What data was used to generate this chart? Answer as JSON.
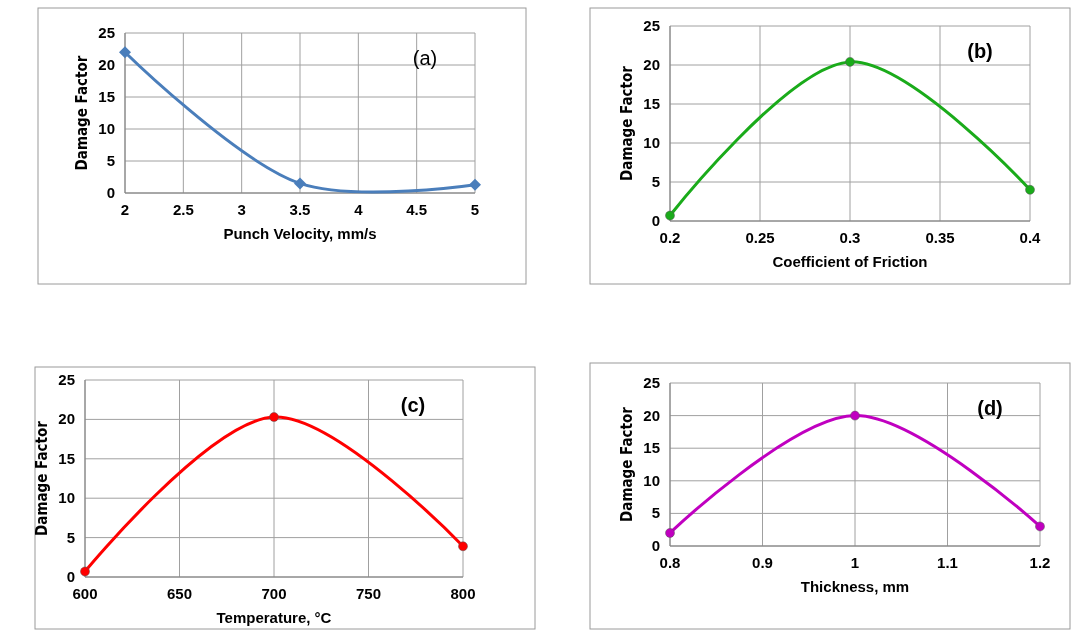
{
  "chart_data": [
    {
      "type": "line",
      "xlabel": "Punch Velocity, mm/s",
      "ylabel": "Damage Factor",
      "annotations": [
        "(a)"
      ],
      "x": [
        2,
        3.5,
        5
      ],
      "series": [
        {
          "color": "#4a7ebb",
          "values": [
            22,
            1.5,
            1.3
          ]
        }
      ],
      "xlim": [
        2,
        5
      ],
      "xticks": [
        2,
        2.5,
        3,
        3.5,
        4,
        4.5,
        5
      ],
      "ylim": [
        0,
        25
      ],
      "yticks": [
        0,
        5,
        10,
        15,
        20,
        25
      ],
      "grid": true,
      "marker": "diamond",
      "line_style": "solid"
    },
    {
      "type": "line",
      "xlabel": "Coefficient of Friction",
      "ylabel": "Damage Factor",
      "annotations": [
        "(b)"
      ],
      "x": [
        0.2,
        0.3,
        0.4
      ],
      "series": [
        {
          "color": "#1aab1a",
          "values": [
            0.7,
            20.4,
            4
          ]
        }
      ],
      "xlim": [
        0.2,
        0.4
      ],
      "xticks": [
        0.2,
        0.25,
        0.3,
        0.35,
        0.4
      ],
      "ylim": [
        0,
        25
      ],
      "yticks": [
        0,
        5,
        10,
        15,
        20,
        25
      ],
      "grid": true,
      "marker": "circle",
      "line_style": "solid"
    },
    {
      "type": "line",
      "xlabel": "Temperature, °C",
      "ylabel": "Damage Factor",
      "annotations": [
        "(c)"
      ],
      "x": [
        600,
        700,
        800
      ],
      "series": [
        {
          "color": "#ff0000",
          "values": [
            0.7,
            20.3,
            3.9
          ]
        }
      ],
      "xlim": [
        600,
        800
      ],
      "xticks": [
        600,
        650,
        700,
        750,
        800
      ],
      "ylim": [
        0,
        25
      ],
      "yticks": [
        0,
        5,
        10,
        15,
        20,
        25
      ],
      "grid": true,
      "marker": "circle",
      "line_style": "solid"
    },
    {
      "type": "line",
      "xlabel": "Thickness, mm",
      "ylabel": "Damage Factor",
      "annotations": [
        "(d)"
      ],
      "x": [
        0.8,
        1,
        1.2
      ],
      "series": [
        {
          "color": "#c000c0",
          "values": [
            2,
            20,
            3
          ]
        }
      ],
      "xlim": [
        0.8,
        1.2
      ],
      "xticks": [
        0.8,
        0.9,
        1,
        1.1,
        1.2
      ],
      "ylim": [
        0,
        25
      ],
      "yticks": [
        0,
        5,
        10,
        15,
        20,
        25
      ],
      "grid": true,
      "marker": "circle",
      "line_style": "solid"
    }
  ]
}
